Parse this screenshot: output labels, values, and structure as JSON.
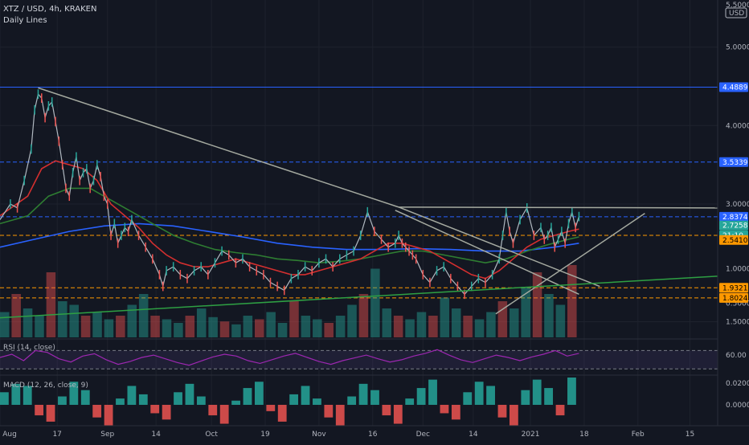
{
  "header": {
    "symbol": "XTZ / USD, 4h, KRAKEN",
    "study": "Daily Lines"
  },
  "currency": "USD",
  "chart_data": {
    "type": "line",
    "title": "XTZ / USD, 4h, KRAKEN",
    "price_axis": {
      "ylim": [
        1.3,
        5.6
      ],
      "ticks": [
        "5.0000",
        "4.0000",
        "3.0000",
        "1.5000",
        "1.0000",
        "0.5000"
      ],
      "tick_values": [
        5.0,
        4.0,
        3.0,
        1.5,
        1.0,
        0.5
      ],
      "top_partial": "5.5000"
    },
    "x_labels": [
      "Aug",
      "17",
      "Sep",
      "14",
      "Oct",
      "19",
      "Nov",
      "16",
      "Dec",
      "14",
      "2021",
      "18",
      "Feb",
      "15"
    ],
    "x_label_t": [
      0.0,
      16.5,
      31.0,
      45.0,
      61.0,
      76.5,
      92.0,
      107.5,
      122.0,
      136.5,
      153.0,
      168.5,
      184.0,
      199.0
    ],
    "price": {
      "name": "XTZ / USD",
      "t": [
        0,
        3,
        5,
        7,
        9,
        10,
        11,
        12,
        13,
        14,
        15,
        16,
        17,
        18,
        19,
        20,
        21,
        22,
        23,
        24,
        25,
        26,
        27,
        28,
        29,
        30,
        31,
        32,
        33,
        34,
        35,
        36,
        37,
        38,
        40,
        42,
        44,
        46,
        47,
        48,
        50,
        52,
        54,
        56,
        58,
        60,
        62,
        64,
        66,
        68,
        70,
        72,
        74,
        76,
        78,
        80,
        82,
        84,
        86,
        88,
        90,
        92,
        94,
        96,
        98,
        100,
        102,
        104,
        106,
        108,
        110,
        112,
        114,
        115,
        116,
        117,
        118,
        119,
        120,
        122,
        124,
        126,
        128,
        130,
        132,
        134,
        136,
        138,
        140,
        142,
        144,
        145,
        146,
        147,
        148,
        150,
        152,
        154,
        156,
        157,
        158,
        159,
        160,
        161,
        162,
        163,
        164,
        165,
        166,
        167
      ],
      "close": [
        2.8,
        3.0,
        2.95,
        3.3,
        3.7,
        4.2,
        4.4,
        4.35,
        4.1,
        4.25,
        4.3,
        4.05,
        3.8,
        3.5,
        3.2,
        3.1,
        3.4,
        3.6,
        3.3,
        3.4,
        3.45,
        3.2,
        3.3,
        3.5,
        3.35,
        3.1,
        3.0,
        2.6,
        2.75,
        2.5,
        2.6,
        2.7,
        2.65,
        2.8,
        2.6,
        2.45,
        2.3,
        2.1,
        1.95,
        2.15,
        2.2,
        2.1,
        2.05,
        2.15,
        2.2,
        2.1,
        2.25,
        2.4,
        2.35,
        2.25,
        2.3,
        2.2,
        2.15,
        2.1,
        2.0,
        1.95,
        1.9,
        2.05,
        2.1,
        2.2,
        2.15,
        2.25,
        2.3,
        2.2,
        2.3,
        2.35,
        2.4,
        2.6,
        2.9,
        2.65,
        2.55,
        2.45,
        2.5,
        2.6,
        2.5,
        2.45,
        2.4,
        2.35,
        2.3,
        2.1,
        2.0,
        2.15,
        2.2,
        2.05,
        1.95,
        1.85,
        1.95,
        2.05,
        2.0,
        2.1,
        2.3,
        2.6,
        2.9,
        2.65,
        2.5,
        2.8,
        2.95,
        2.6,
        2.7,
        2.55,
        2.6,
        2.7,
        2.45,
        2.55,
        2.65,
        2.5,
        2.75,
        2.9,
        2.7,
        2.84
      ]
    },
    "ema_red": {
      "t": [
        0,
        8,
        12,
        16,
        20,
        24,
        28,
        32,
        36,
        40,
        44,
        48,
        52,
        56,
        60,
        64,
        68,
        72,
        76,
        80,
        84,
        88,
        92,
        96,
        100,
        104,
        108,
        112,
        116,
        120,
        124,
        128,
        132,
        136,
        140,
        144,
        148,
        152,
        156,
        160,
        164,
        167
      ],
      "v": [
        2.85,
        3.1,
        3.45,
        3.55,
        3.5,
        3.45,
        3.3,
        3.0,
        2.85,
        2.7,
        2.5,
        2.35,
        2.25,
        2.2,
        2.2,
        2.25,
        2.3,
        2.25,
        2.2,
        2.15,
        2.1,
        2.1,
        2.15,
        2.2,
        2.25,
        2.3,
        2.4,
        2.5,
        2.5,
        2.45,
        2.4,
        2.3,
        2.2,
        2.1,
        2.05,
        2.15,
        2.3,
        2.45,
        2.55,
        2.6,
        2.65,
        2.68
      ]
    },
    "ema_green": {
      "t": [
        0,
        8,
        14,
        20,
        26,
        32,
        38,
        44,
        50,
        56,
        62,
        68,
        74,
        80,
        86,
        92,
        98,
        104,
        110,
        116,
        122,
        128,
        134,
        140,
        146,
        152,
        158,
        164,
        167
      ],
      "v": [
        2.75,
        2.85,
        3.1,
        3.2,
        3.2,
        3.05,
        2.9,
        2.75,
        2.6,
        2.5,
        2.42,
        2.38,
        2.35,
        2.3,
        2.28,
        2.25,
        2.27,
        2.3,
        2.35,
        2.4,
        2.4,
        2.35,
        2.3,
        2.25,
        2.3,
        2.4,
        2.48,
        2.55,
        2.58
      ]
    },
    "ema_blue": {
      "t": [
        0,
        10,
        20,
        30,
        40,
        50,
        60,
        70,
        80,
        90,
        100,
        110,
        120,
        130,
        140,
        150,
        160,
        167
      ],
      "v": [
        2.45,
        2.55,
        2.65,
        2.72,
        2.75,
        2.72,
        2.65,
        2.58,
        2.5,
        2.45,
        2.42,
        2.42,
        2.43,
        2.42,
        2.4,
        2.4,
        2.45,
        2.5
      ]
    },
    "trendlines": [
      {
        "t": [
          11,
          115
        ],
        "v": [
          4.48,
          2.96
        ],
        "color": "#a5aaa0"
      },
      {
        "t": [
          115,
          207
        ],
        "v": [
          2.96,
          2.95
        ],
        "color": "#a5aaa0"
      },
      {
        "t": [
          115,
          173
        ],
        "v": [
          2.96,
          1.95
        ],
        "color": "#a5aaa0"
      },
      {
        "t": [
          114,
          167
        ],
        "v": [
          2.92,
          1.85
        ],
        "color": "#a5aaa0"
      },
      {
        "t": [
          143,
          186
        ],
        "v": [
          1.6,
          2.88
        ],
        "color": "#a5aaa0"
      },
      {
        "t": [
          0,
          207
        ],
        "v": [
          1.55,
          2.08
        ],
        "color": "#2ea043"
      }
    ],
    "levels": [
      {
        "value": 4.4889,
        "label": "4.4889",
        "style": "solid",
        "color": "#2962ff"
      },
      {
        "value": 3.5339,
        "label": "3.5339",
        "style": "dashed",
        "color": "#2962ff"
      },
      {
        "value": 2.8374,
        "label": "2.8374",
        "style": "dashed",
        "color": "#2962ff"
      },
      {
        "value": 2.6,
        "label": "",
        "style": "dashed",
        "color": "#ff9800"
      },
      {
        "value": 1.9321,
        "label": "1.9321",
        "style": "dashed",
        "color": "#ff9800"
      },
      {
        "value": 1.8024,
        "label": "1.8024",
        "style": "dashed",
        "color": "#ff9800"
      }
    ],
    "price_badges": [
      {
        "value": 4.4889,
        "label": "4.4889",
        "bg": "#2962ff",
        "fg": "#ffffff"
      },
      {
        "value": 3.5339,
        "label": "3.5339",
        "bg": "#2962ff",
        "fg": "#ffffff"
      },
      {
        "value": 2.8374,
        "label": "2.8374",
        "bg": "#2962ff",
        "fg": "#ffffff"
      },
      {
        "value": 2.7258,
        "label": "2.7258",
        "bg": "#26a69a",
        "fg": "#ffffff"
      },
      {
        "value": 2.6,
        "label": "21:10",
        "bg": "#26a69a",
        "fg": "#ffffff"
      },
      {
        "value": 2.541,
        "label": "2.5410",
        "bg": "#ff9800",
        "fg": "#000000"
      },
      {
        "value": 1.9321,
        "label": "1.9321",
        "bg": "#ff9800",
        "fg": "#000000"
      },
      {
        "value": 1.8024,
        "label": "1.8024",
        "bg": "#ff9800",
        "fg": "#000000"
      }
    ],
    "rsi": {
      "label": "RSI (14, close)",
      "tick": "60.00",
      "upper": 70,
      "lower": 30,
      "values": [
        55,
        62,
        48,
        70,
        66,
        52,
        45,
        58,
        63,
        50,
        40,
        46,
        55,
        60,
        52,
        44,
        38,
        47,
        56,
        62,
        58,
        48,
        42,
        50,
        58,
        64,
        55,
        46,
        40,
        48,
        54,
        60,
        52,
        45,
        50,
        58,
        64,
        72,
        60,
        50,
        44,
        52,
        60,
        55,
        48,
        56,
        62,
        70,
        58,
        64
      ]
    },
    "macd": {
      "label": "MACD (12, 26, close, 9)",
      "ticks": [
        "0.0200",
        "0.0000"
      ],
      "hist": [
        0.012,
        0.02,
        0.018,
        -0.01,
        -0.016,
        0.008,
        0.022,
        0.014,
        -0.012,
        -0.02,
        0.006,
        0.018,
        0.01,
        -0.008,
        -0.014,
        0.012,
        0.02,
        0.008,
        -0.01,
        -0.018,
        0.004,
        0.016,
        0.022,
        -0.006,
        -0.016,
        0.01,
        0.018,
        0.006,
        -0.012,
        -0.02,
        0.008,
        0.02,
        0.014,
        -0.01,
        -0.018,
        0.006,
        0.016,
        0.024,
        -0.008,
        -0.014,
        0.012,
        0.022,
        0.018,
        -0.012,
        -0.02,
        0.014,
        0.024,
        0.016,
        -0.01,
        0.026
      ]
    },
    "volume": {
      "values": [
        0.35,
        0.6,
        0.4,
        0.3,
        0.9,
        0.5,
        0.45,
        0.3,
        0.35,
        0.25,
        0.3,
        0.45,
        0.6,
        0.3,
        0.25,
        0.2,
        0.3,
        0.4,
        0.28,
        0.22,
        0.18,
        0.3,
        0.25,
        0.35,
        0.2,
        0.5,
        0.3,
        0.25,
        0.2,
        0.3,
        0.45,
        0.6,
        0.95,
        0.4,
        0.3,
        0.25,
        0.35,
        0.3,
        0.55,
        0.4,
        0.3,
        0.25,
        0.35,
        0.5,
        0.4,
        0.7,
        0.9,
        0.6,
        0.45,
        1.0
      ]
    }
  }
}
